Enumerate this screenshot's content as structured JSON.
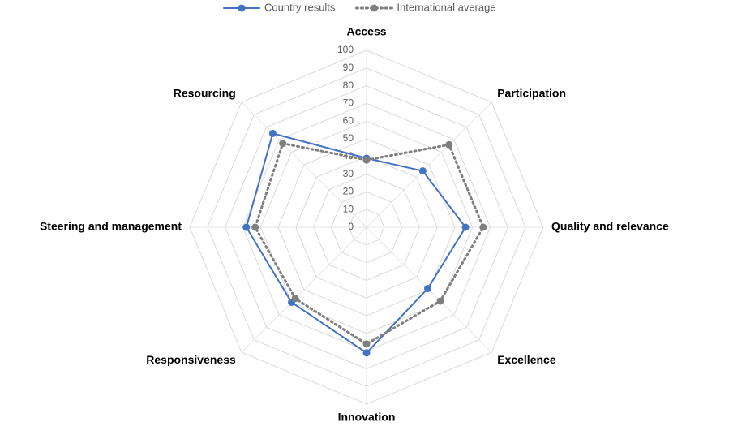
{
  "chart_data": {
    "type": "radar",
    "categories": [
      "Access",
      "Participation",
      "Quality and relevance",
      "Excellence",
      "Innovation",
      "Responsiveness",
      "Steering and management",
      "Resourcing"
    ],
    "series": [
      {
        "name": "Country results",
        "color": "#4472c4",
        "dash": "solid",
        "values": [
          39,
          45,
          56,
          49,
          71,
          60,
          68,
          75
        ]
      },
      {
        "name": "International average",
        "color": "#7f7f7f",
        "dash": "dotted",
        "values": [
          38,
          66,
          66,
          59,
          66,
          57,
          63,
          67
        ]
      }
    ],
    "rlim": [
      0,
      100
    ],
    "rticks": [
      0,
      10,
      20,
      30,
      40,
      50,
      60,
      70,
      80,
      90,
      100
    ],
    "grid": true,
    "legend": "top"
  }
}
